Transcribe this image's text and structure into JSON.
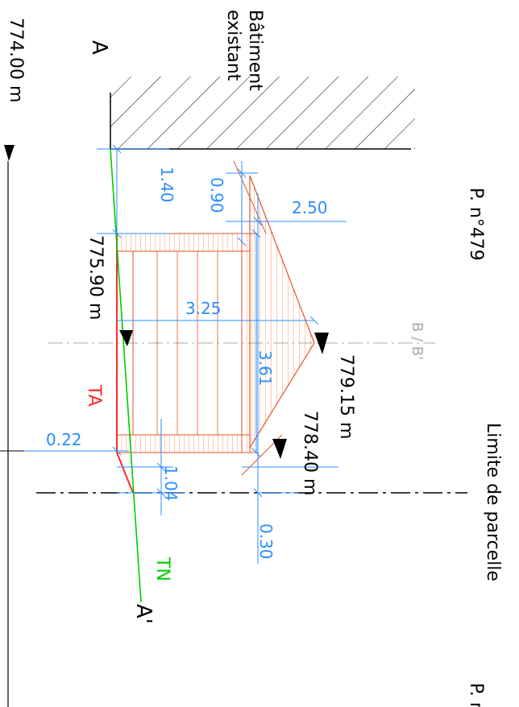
{
  "labels": {
    "section_start": "A",
    "section_end": "A'",
    "existing_building": [
      "Bâtiment",
      "existant"
    ],
    "plot_top": "P. n°479",
    "plot_bottom": "P. n",
    "boundary": "Limite de parcelle",
    "section_b": "B / B'",
    "ta": "TA",
    "tn": "TN"
  },
  "elevations": {
    "reference": "774.00 m",
    "terrace": "775.90 m",
    "ridge": "779.15 m",
    "eave": "778.40 m"
  },
  "dimensions": {
    "d_1_40": "1.40",
    "d_0_90": "0.90",
    "d_2_50": "2.50",
    "d_3_25": "3.25",
    "d_3_61": "3.61",
    "d_0_22": "0.22",
    "d_1_04": "1.04",
    "d_0_30": "0.30"
  },
  "colors": {
    "dimension": "#2a8cff",
    "building_section": "#e2552a",
    "hatch_fill": "#ff7f50",
    "terrain_natural": "#00cc00",
    "terrain_finished": "#ff2a2a",
    "axis": "#a8a8a8",
    "ink": "#000000"
  },
  "icons": [
    "elevation-marker-icon"
  ]
}
